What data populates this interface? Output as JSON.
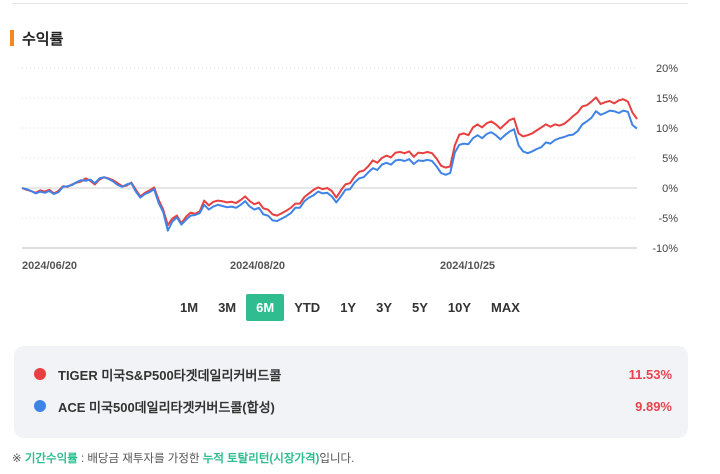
{
  "section": {
    "title": "수익률"
  },
  "chart_data": {
    "type": "line",
    "x_ticks": [
      "2024/06/20",
      "2024/08/20",
      "2024/10/25"
    ],
    "y_ticks": [
      "20%",
      "15%",
      "10%",
      "5%",
      "0%",
      "-5%",
      "-10%"
    ],
    "ylim": [
      -10,
      20
    ],
    "grid": true,
    "series": [
      {
        "name": "TIGER 미국S&P500타겟데일리커버드콜",
        "color": "#e84040",
        "values": [
          0,
          -0.3,
          -0.5,
          -0.8,
          -0.4,
          -0.6,
          -0.3,
          -0.9,
          -0.5,
          0.3,
          0.2,
          0.6,
          0.9,
          1.1,
          1.6,
          1.2,
          0.6,
          1.4,
          1.8,
          1.6,
          1.3,
          0.8,
          0.3,
          0.4,
          0.9,
          -0.3,
          -1.4,
          -0.8,
          -0.4,
          0.1,
          -2,
          -3.6,
          -6.2,
          -5.1,
          -4.6,
          -5.9,
          -4.8,
          -4.1,
          -4.3,
          -3.9,
          -2.1,
          -2.9,
          -2.3,
          -2.1,
          -2.2,
          -2.4,
          -2.3,
          -2.5,
          -2,
          -1.4,
          -2.2,
          -2.7,
          -2.4,
          -3.4,
          -3.6,
          -4.4,
          -4.6,
          -4.2,
          -3.8,
          -3.3,
          -2.6,
          -2.6,
          -1.5,
          -0.9,
          -0.3,
          0.1,
          -0.2,
          0,
          -0.5,
          -1.6,
          -0.4,
          0.6,
          0.8,
          1.9,
          2.7,
          2.9,
          3.6,
          4.6,
          4.2,
          5,
          5.4,
          5.1,
          5.9,
          6,
          5.8,
          6.1,
          5.2,
          5.9,
          5.8,
          6,
          5.8,
          4.9,
          3.7,
          3.4,
          3.6,
          7.1,
          8.9,
          9.1,
          8.8,
          10.1,
          10.6,
          10.1,
          10.8,
          11.1,
          10.6,
          9.9,
          10.6,
          11.3,
          11.6,
          9.1,
          8.6,
          8.8,
          9.1,
          9.6,
          10.1,
          10.6,
          10.2,
          10.6,
          10.4,
          10.7,
          11.3,
          12,
          12.6,
          13.6,
          13.8,
          14.4,
          15.1,
          14,
          14.3,
          14.5,
          14.1,
          14.6,
          14.8,
          14.4,
          12.6,
          11.5
        ]
      },
      {
        "name": "ACE 미국500데일리타겟커버드콜(합성)",
        "color": "#3f84e5",
        "values": [
          0,
          -0.2,
          -0.5,
          -0.9,
          -0.6,
          -0.8,
          -0.5,
          -1,
          -0.7,
          0.2,
          0.3,
          0.5,
          1,
          1.3,
          1.2,
          1.4,
          0.8,
          1.6,
          1.8,
          1.5,
          1.1,
          0.5,
          0.2,
          0.6,
          0.8,
          -0.6,
          -1.6,
          -1,
          -0.7,
          -0.2,
          -2.5,
          -4,
          -7.1,
          -5.6,
          -4.9,
          -6.1,
          -5.3,
          -4.6,
          -4.5,
          -4.2,
          -2.8,
          -3.6,
          -3.1,
          -2.8,
          -3,
          -3.2,
          -3.1,
          -3.3,
          -2.8,
          -2.2,
          -3.1,
          -3.6,
          -3.3,
          -4.4,
          -4.6,
          -5.4,
          -5.5,
          -5.1,
          -4.7,
          -4.2,
          -3.3,
          -3.3,
          -2.2,
          -1.6,
          -1.2,
          -0.6,
          -0.9,
          -0.8,
          -1.4,
          -2.4,
          -1.4,
          -0.3,
          -0.2,
          0.9,
          1.6,
          1.8,
          2.6,
          3.3,
          3,
          3.9,
          4.2,
          3.9,
          4.6,
          4.7,
          4.5,
          4.8,
          4,
          4.6,
          4.5,
          4.7,
          4.5,
          3.6,
          2.5,
          2.2,
          2.5,
          5.9,
          7.2,
          7.4,
          7.3,
          8.3,
          8.8,
          8.3,
          9,
          9.3,
          8.8,
          8.1,
          8.8,
          9.4,
          9.8,
          7.1,
          6.1,
          5.8,
          6.1,
          6.5,
          6.8,
          7.6,
          7.4,
          8,
          8.3,
          8.5,
          8.8,
          8.9,
          9.5,
          10.6,
          11.1,
          11.7,
          12.8,
          12.2,
          12.5,
          12.9,
          12.8,
          12.5,
          12.9,
          12.7,
          10.5,
          9.9
        ]
      }
    ]
  },
  "periods": {
    "items": [
      "1M",
      "3M",
      "6M",
      "YTD",
      "1Y",
      "3Y",
      "5Y",
      "10Y",
      "MAX"
    ],
    "active": "6M"
  },
  "legend": {
    "items": [
      {
        "name": "TIGER 미국S&P500타겟데일리커버드콜",
        "value": "11.53%",
        "color": "#e84040"
      },
      {
        "name": "ACE 미국500데일리타겟커버드콜(합성)",
        "value": "9.89%",
        "color": "#3f84e5"
      }
    ]
  },
  "footnote": {
    "prefix": "※ ",
    "term": "기간수익률",
    "middle": " : 배당금 재투자를 가정한 ",
    "highlight": "누적 토탈리턴(시장가격)",
    "suffix": "입니다."
  }
}
